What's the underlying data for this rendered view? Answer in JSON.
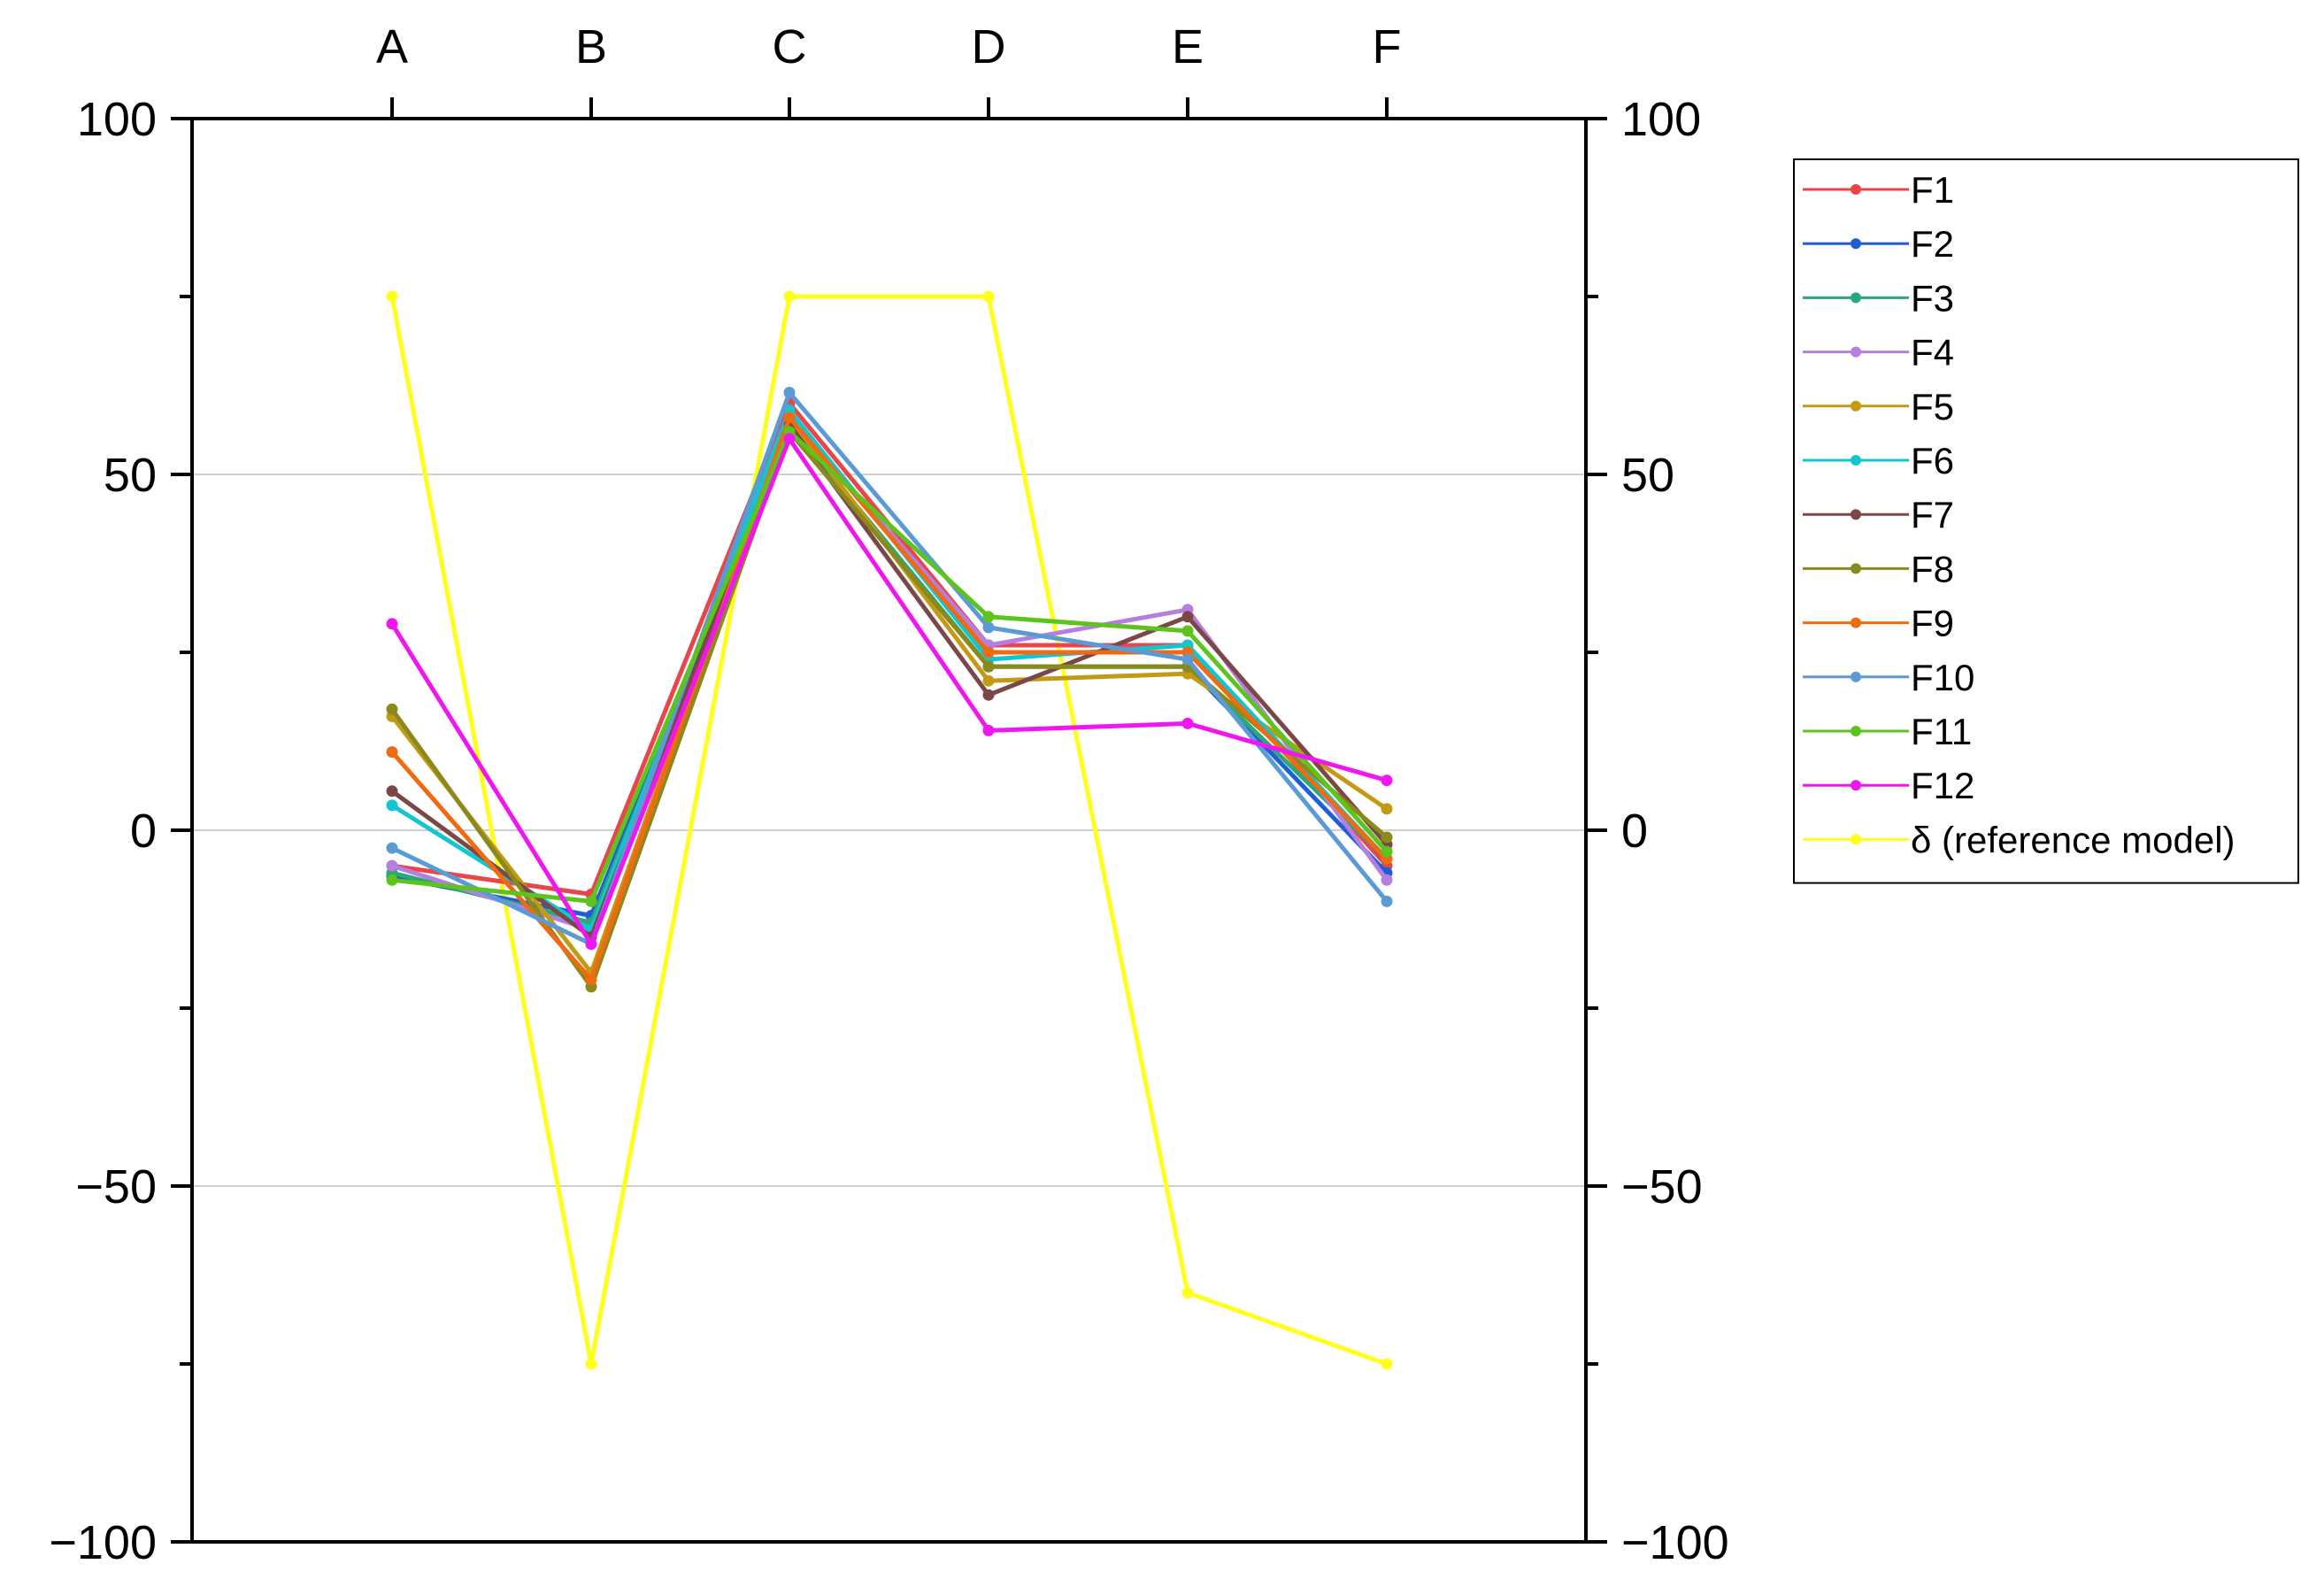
{
  "chart_data": {
    "type": "line",
    "title": "",
    "xlabel": "",
    "ylabel": "",
    "categories": [
      "A",
      "B",
      "C",
      "D",
      "E",
      "F"
    ],
    "ylim": [
      -100,
      100
    ],
    "yticks": [
      100,
      50,
      0,
      -50,
      -100
    ],
    "ytick_labels": [
      "100",
      "50",
      "0",
      "−50",
      "−100"
    ],
    "secondary_y_axis": true,
    "grid": "horizontal at 50, 0, -50",
    "legend_position": "top-right, outside plot",
    "series": [
      {
        "name": "F1",
        "color": "#e8464b",
        "values": [
          -5,
          -9,
          60,
          26,
          26,
          -5
        ]
      },
      {
        "name": "F2",
        "color": "#1f5fd4",
        "values": [
          -6.5,
          -12,
          57,
          23,
          23,
          -6
        ]
      },
      {
        "name": "F3",
        "color": "#2aa876",
        "values": [
          -6,
          -13,
          57,
          23,
          23,
          -4
        ]
      },
      {
        "name": "F4",
        "color": "#b57fe0",
        "values": [
          -5,
          -14,
          58,
          26,
          31,
          -7
        ]
      },
      {
        "name": "F5",
        "color": "#c49a15",
        "values": [
          16,
          -20,
          58,
          21,
          22,
          3
        ]
      },
      {
        "name": "F6",
        "color": "#12c6d0",
        "values": [
          3.5,
          -14,
          59,
          24,
          26,
          -4
        ]
      },
      {
        "name": "F7",
        "color": "#7b4747",
        "values": [
          5.5,
          -15,
          57,
          19,
          30,
          -2
        ]
      },
      {
        "name": "F8",
        "color": "#8a8a1c",
        "values": [
          17,
          -22,
          56,
          23,
          23,
          -1
        ]
      },
      {
        "name": "F9",
        "color": "#f06a12",
        "values": [
          11,
          -21,
          58,
          25,
          25,
          -4
        ]
      },
      {
        "name": "F10",
        "color": "#5b9bd5",
        "values": [
          -2.5,
          -16,
          61.5,
          28.5,
          24,
          -10
        ]
      },
      {
        "name": "F11",
        "color": "#5cc41d",
        "values": [
          -7,
          -10,
          56,
          30,
          28,
          -3
        ]
      },
      {
        "name": "F12",
        "color": "#f016f0",
        "values": [
          29,
          -16,
          55,
          14,
          15,
          7
        ]
      },
      {
        "name": "δ (reference model)",
        "color": "#ffff1e",
        "values": [
          75,
          -75,
          75,
          75,
          -65,
          -75
        ]
      }
    ]
  }
}
